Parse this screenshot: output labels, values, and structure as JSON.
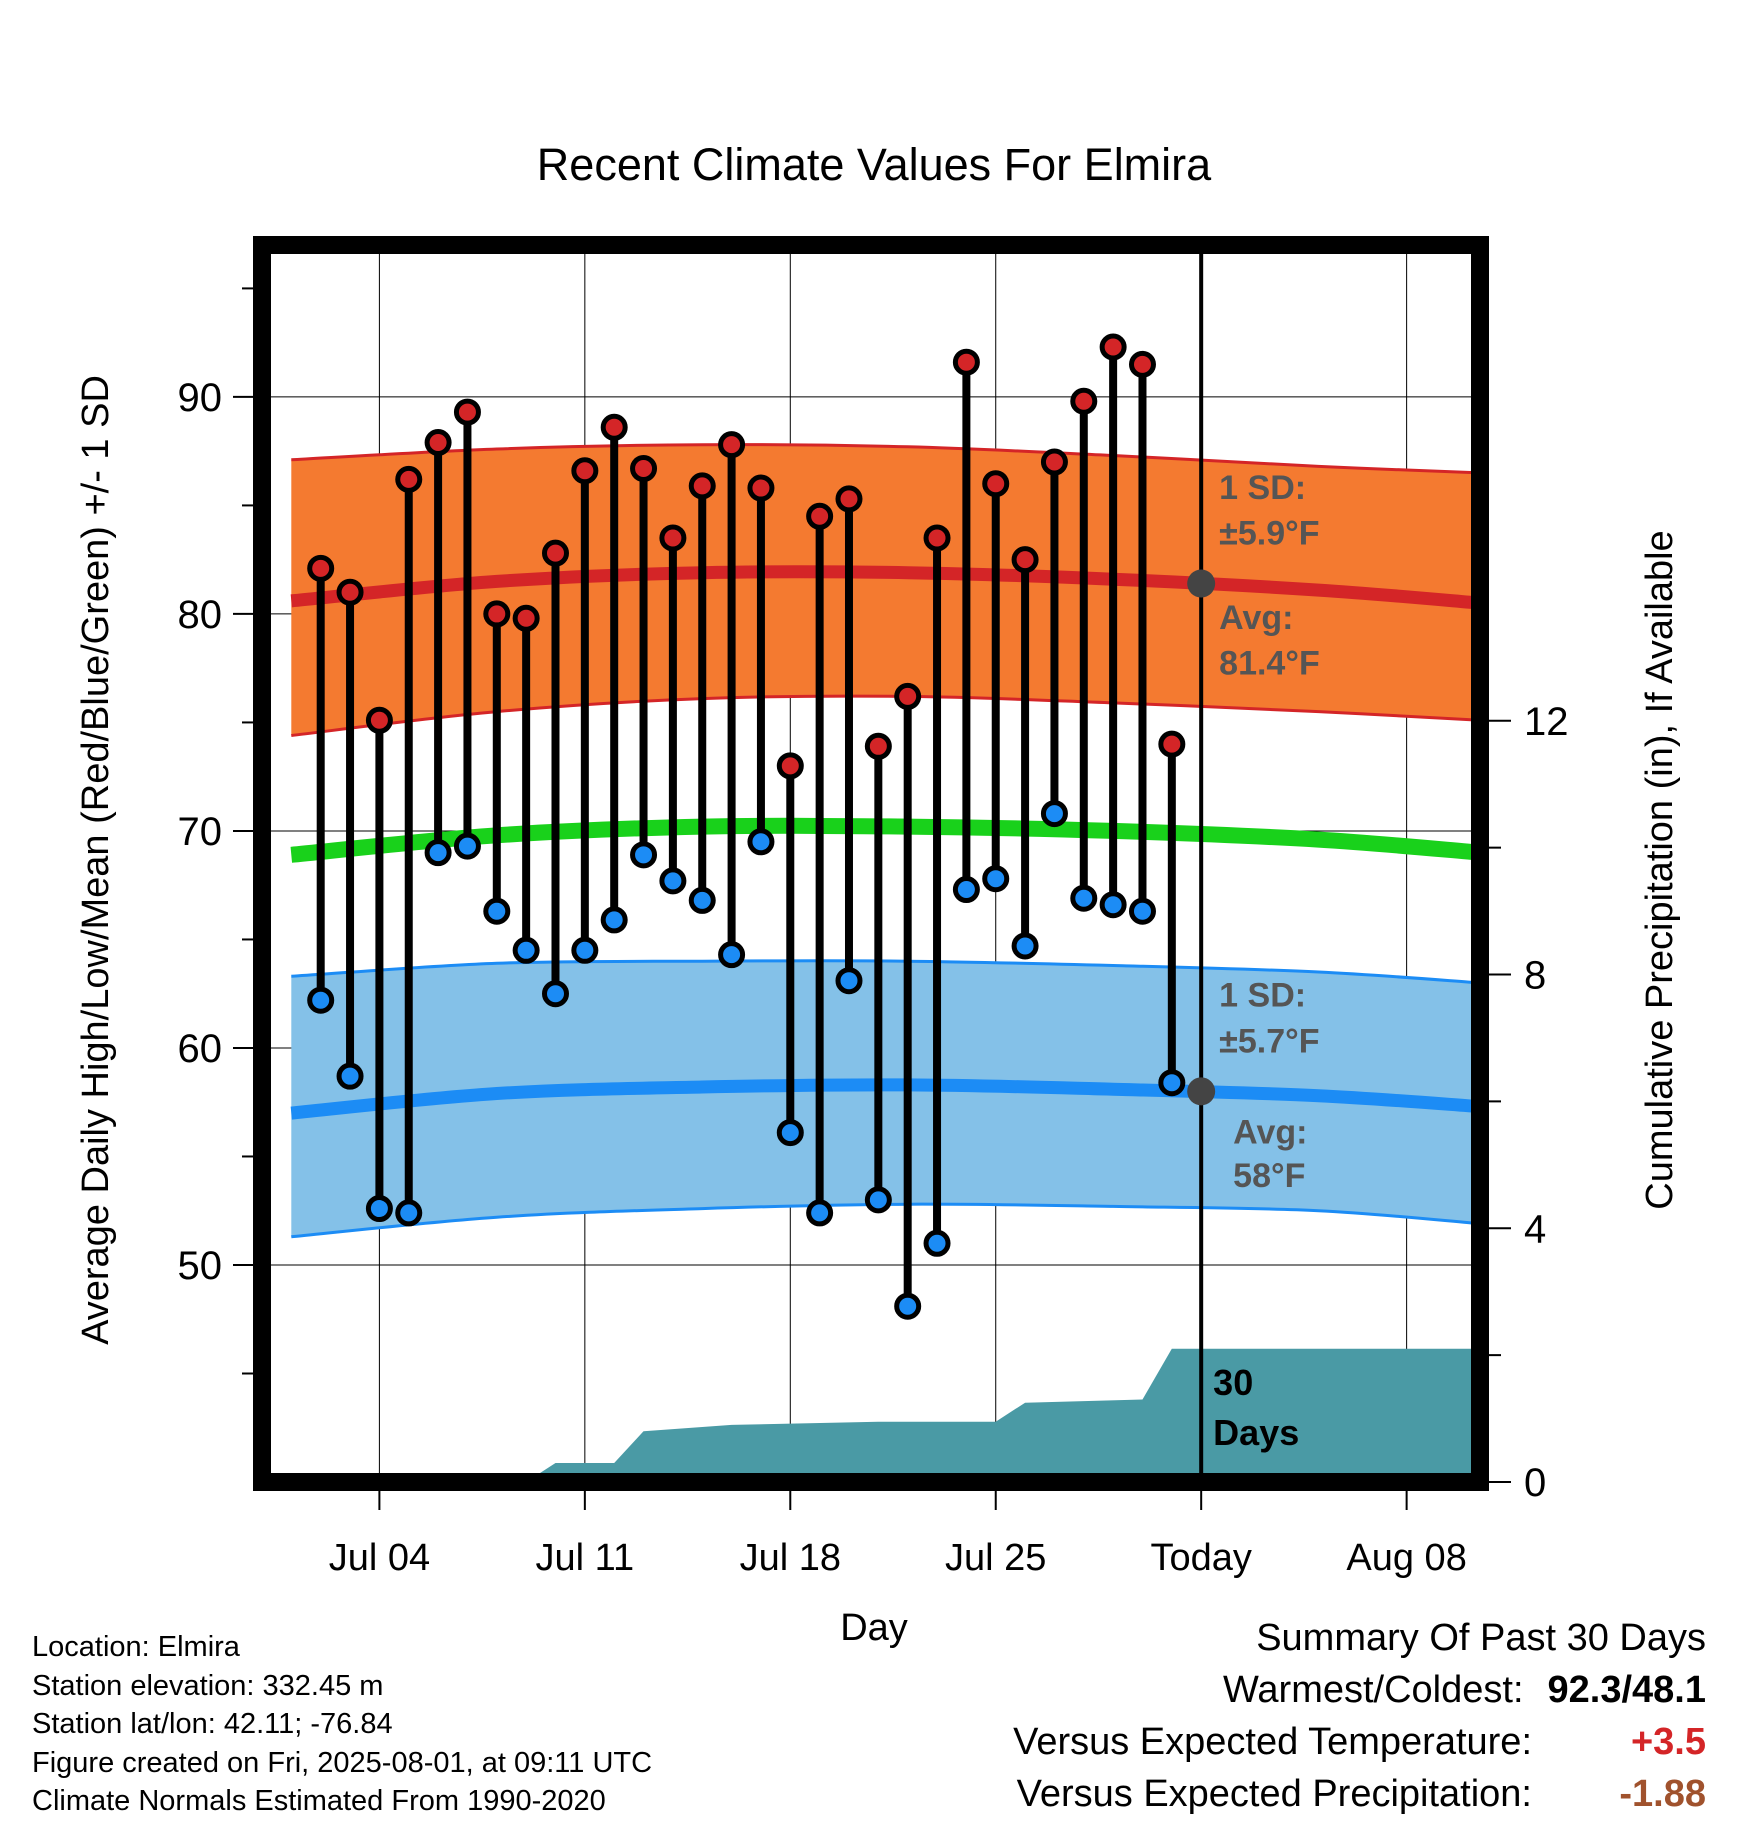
{
  "chart_data": {
    "type": "line",
    "title": "Recent Climate Values For Elmira",
    "xlabel": "Day",
    "ylabel": "Average Daily High/Low/Mean (Red/Blue/Green) +/- 1 SD",
    "y2label": "Cumulative Precipitation (in), If Available",
    "ylim": [
      40,
      97
    ],
    "y2lim": [
      0,
      19.5
    ],
    "xlim": [
      0,
      41.5
    ],
    "x_ticks": [
      {
        "day": 4,
        "label": "Jul 04"
      },
      {
        "day": 11,
        "label": "Jul 11"
      },
      {
        "day": 18,
        "label": "Jul 18"
      },
      {
        "day": 25,
        "label": "Jul 25"
      },
      {
        "day": 32,
        "label": "Today"
      },
      {
        "day": 39,
        "label": "Aug 08"
      }
    ],
    "y_ticks": [
      50,
      60,
      70,
      80,
      90
    ],
    "y2_ticks": [
      0,
      4,
      8,
      12
    ],
    "grid": true,
    "today_day": 32,
    "days": [
      2,
      3,
      4,
      5,
      6,
      7,
      8,
      9,
      10,
      11,
      12,
      13,
      14,
      15,
      16,
      17,
      18,
      19,
      20,
      21,
      22,
      23,
      24,
      25,
      26,
      27,
      28,
      29,
      30,
      31
    ],
    "highs": [
      82.1,
      81.0,
      75.1,
      86.2,
      87.9,
      89.3,
      80.0,
      79.8,
      82.8,
      86.6,
      88.6,
      86.7,
      83.5,
      85.9,
      87.8,
      85.8,
      73.0,
      84.5,
      85.3,
      73.9,
      76.2,
      83.5,
      91.6,
      86.0,
      82.5,
      87.0,
      89.8,
      92.3,
      91.5,
      74.0
    ],
    "lows": [
      62.2,
      58.7,
      52.6,
      52.4,
      69.0,
      69.3,
      66.3,
      64.5,
      62.5,
      64.5,
      65.9,
      68.9,
      67.7,
      66.8,
      64.3,
      69.5,
      56.1,
      52.4,
      63.1,
      53.0,
      48.1,
      51.0,
      67.3,
      67.8,
      64.7,
      70.8,
      66.9,
      66.6,
      66.3,
      58.4
    ],
    "normals": {
      "days": [
        1,
        8,
        15,
        22,
        29,
        36,
        41.5
      ],
      "high_avg": [
        80.6,
        81.5,
        81.9,
        81.9,
        81.6,
        81.1,
        80.5
      ],
      "high_upper": [
        87.1,
        87.6,
        87.8,
        87.7,
        87.3,
        86.8,
        86.5
      ],
      "high_lower": [
        74.4,
        75.5,
        76.1,
        76.2,
        75.9,
        75.5,
        75.1
      ],
      "mean_avg": [
        68.9,
        69.8,
        70.2,
        70.2,
        70.0,
        69.6,
        69.0
      ],
      "low_avg": [
        57.0,
        57.9,
        58.2,
        58.3,
        58.1,
        57.8,
        57.3
      ],
      "low_upper": [
        63.3,
        63.9,
        64.0,
        64.0,
        63.8,
        63.5,
        63.0
      ],
      "low_lower": [
        51.3,
        52.2,
        52.6,
        52.8,
        52.7,
        52.5,
        51.9
      ]
    },
    "precip": {
      "days": [
        1,
        9,
        10,
        12,
        13,
        16,
        21,
        25,
        26,
        30,
        31,
        41.5
      ],
      "values": [
        0,
        0,
        0.3,
        0.3,
        0.8,
        0.9,
        0.95,
        0.95,
        1.25,
        1.3,
        2.1,
        2.1
      ]
    },
    "annotations": {
      "high_sd_label": "1 SD:",
      "high_sd_value": "±5.9°F",
      "high_avg_label": "Avg:",
      "high_avg_value": "81.4°F",
      "low_sd_label": "1 SD:",
      "low_sd_value": "±5.7°F",
      "low_avg_label": "Avg:",
      "low_avg_value": "58°F",
      "precip_label_line1": "30",
      "precip_label_line2": "Days"
    },
    "today_markers": {
      "high": 81.4,
      "low": 58.0
    },
    "colors": {
      "high_band": "#f47a30",
      "high_line": "#d42527",
      "low_band": "#84c1e8",
      "low_line": "#1c8cf5",
      "mean_line": "#19d11b",
      "precip": "#4a9aa5",
      "high_dot": "#d42527",
      "low_dot": "#1c8cf5",
      "annotation": "#555555"
    }
  },
  "info": {
    "location": "Location: Elmira",
    "elevation": "Station elevation: 332.45 m",
    "latlon": "Station lat/lon: 42.11; -76.84",
    "created": "Figure created on Fri, 2025-08-01, at 09:11 UTC",
    "normals": "Climate Normals Estimated From 1990-2020"
  },
  "summary": {
    "title": "Summary Of Past 30 Days",
    "warmest_label": "Warmest/Coldest:",
    "warmest_value": "92.3/48.1",
    "temp_label": "Versus Expected Temperature:",
    "temp_value": "+3.5",
    "temp_color": "#d42527",
    "precip_label": "Versus Expected Precipitation:",
    "precip_value": "-1.88",
    "precip_color": "#a0522d"
  }
}
